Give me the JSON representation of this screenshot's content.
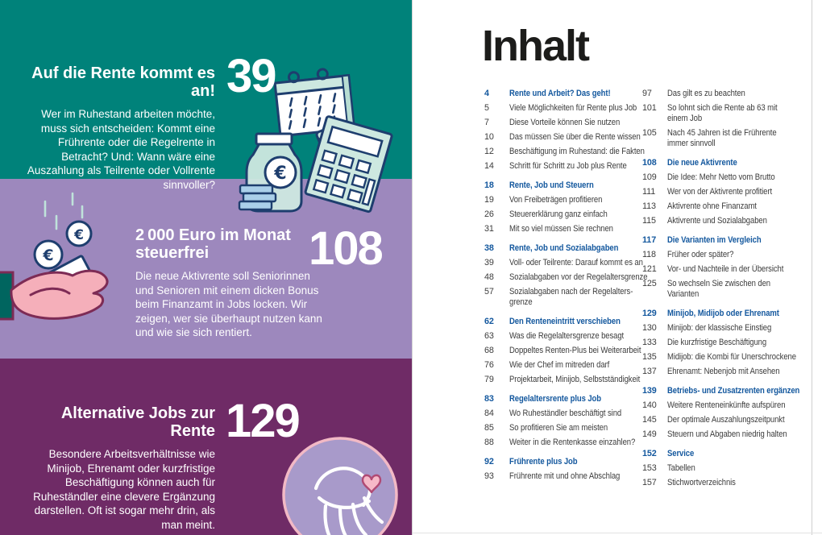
{
  "colors": {
    "teal": "#00827a",
    "purple": "#9d88bd",
    "plum": "#6f2b66",
    "toc_blue": "#14589e",
    "toc_text": "#3c3c3c",
    "icon_outline": "#1e3e6e",
    "mint": "#cde8e0",
    "coin_blue": "#aacfe9",
    "hand_pink": "#f5afba",
    "hand_outline": "#7d2b55",
    "heart_pink": "#f6b9c8",
    "circle_fill": "#a89aca",
    "circle_border": "#f2b9c5"
  },
  "panels": [
    {
      "page": "39",
      "title": "Auf die Rente kommt es an!",
      "body": "Wer im Ruhestand arbeiten möchte, muss sich entscheiden: Kommt eine Frührente oder die Regelrente in Betracht? Und: Wann wäre eine Auszahlung als Teilrente oder Vollrente sinnvoller?",
      "icons": [
        "calendar-icon",
        "calculator-icon",
        "pencil-icon",
        "money-jar-icon"
      ]
    },
    {
      "page": "108",
      "title": "2 000 Euro im Monat steuerfrei",
      "body": "Die neue Aktivrente soll Seniorinnen und Senioren mit einem dicken Bonus beim Finanzamt in Jobs locken. Wir zeigen, wer sie überhaupt nutzen kann und wie sie sich rentiert.",
      "icons": [
        "falling-coins-icon",
        "banknote-icon",
        "open-hand-icon"
      ]
    },
    {
      "page": "129",
      "title": "Alternative Jobs zur Rente",
      "body": "Besondere Arbeitsverhältnisse wie Minijob, Ehrenamt oder kurzfristige Beschäftigung können auch für Ruheständler eine clevere Ergänzung darstellen. Oft ist sogar mehr drin, als man meint.",
      "icons": [
        "hands-heart-icon"
      ]
    }
  ],
  "toc": {
    "title": "Inhalt",
    "columns": [
      {
        "sections": [
          {
            "header": {
              "page": "4",
              "label": "Rente und Arbeit? Das geht!"
            },
            "items": [
              {
                "page": "5",
                "label": "Viele Möglichkeiten für Rente plus Job"
              },
              {
                "page": "7",
                "label": "Diese Vorteile können Sie nutzen"
              },
              {
                "page": "10",
                "label": "Das müssen Sie über die Rente wissen"
              },
              {
                "page": "12",
                "label": "Beschäftigung im Ruhestand: die Fakten"
              },
              {
                "page": "14",
                "label": "Schritt für Schritt zu Job plus Rente"
              }
            ]
          },
          {
            "header": {
              "page": "18",
              "label": "Rente, Job und Steuern"
            },
            "items": [
              {
                "page": "19",
                "label": "Von Freibeträgen profitieren"
              },
              {
                "page": "26",
                "label": "Steuererklärung ganz einfach"
              },
              {
                "page": "31",
                "label": "Mit so viel müssen Sie rechnen"
              }
            ]
          },
          {
            "header": {
              "page": "38",
              "label": "Rente, Job und Sozialabgaben"
            },
            "items": [
              {
                "page": "39",
                "label": "Voll- oder Teilrente: Darauf kommt es an"
              },
              {
                "page": "48",
                "label": "Sozialabgaben vor der Regelaltersgrenze"
              },
              {
                "page": "57",
                "label": "Sozialabgaben nach der Regelalters-\ngrenze"
              }
            ]
          },
          {
            "header": {
              "page": "62",
              "label": "Den Renteneintritt verschieben"
            },
            "items": [
              {
                "page": "63",
                "label": "Was die Regelaltersgrenze besagt"
              },
              {
                "page": "68",
                "label": "Doppeltes Renten-Plus bei Weiterarbeit"
              },
              {
                "page": "76",
                "label": "Wie der Chef im mitreden darf"
              },
              {
                "page": "79",
                "label": "Projektarbeit, Minijob, Selbstständigkeit"
              }
            ]
          },
          {
            "header": {
              "page": "83",
              "label": "Regelaltersrente plus Job"
            },
            "items": [
              {
                "page": "84",
                "label": "Wo Ruheständler beschäftigt sind"
              },
              {
                "page": "85",
                "label": "So profitieren Sie am meisten"
              },
              {
                "page": "88",
                "label": "Weiter in die Rentenkasse einzahlen?"
              }
            ]
          },
          {
            "header": {
              "page": "92",
              "label": "Frührente plus Job"
            },
            "items": [
              {
                "page": "93",
                "label": "Frührente mit und ohne Abschlag"
              }
            ]
          }
        ]
      },
      {
        "sections": [
          {
            "header": null,
            "items": [
              {
                "page": "97",
                "label": "Das gilt es zu beachten"
              },
              {
                "page": "101",
                "label": "So lohnt sich die Rente ab 63 mit\neinem Job"
              },
              {
                "page": "105",
                "label": "Nach 45 Jahren ist die Frührente\nimmer sinnvoll"
              }
            ]
          },
          {
            "header": {
              "page": "108",
              "label": "Die neue Aktivrente"
            },
            "items": [
              {
                "page": "109",
                "label": "Die Idee: Mehr Netto vom Brutto"
              },
              {
                "page": "111",
                "label": "Wer von der Aktivrente profitiert"
              },
              {
                "page": "113",
                "label": "Aktivrente ohne Finanzamt"
              },
              {
                "page": "115",
                "label": "Aktivrente und Sozialabgaben"
              }
            ]
          },
          {
            "header": {
              "page": "117",
              "label": "Die Varianten im Vergleich"
            },
            "items": [
              {
                "page": "118",
                "label": "Früher oder später?"
              },
              {
                "page": "121",
                "label": "Vor- und Nachteile in der Übersicht"
              },
              {
                "page": "125",
                "label": "So wechseln Sie zwischen den\nVarianten"
              }
            ]
          },
          {
            "header": {
              "page": "129",
              "label": "Minijob, Midijob oder Ehrenamt"
            },
            "items": [
              {
                "page": "130",
                "label": "Minijob: der klassische Einstieg"
              },
              {
                "page": "133",
                "label": "Die kurzfristige Beschäftigung"
              },
              {
                "page": "135",
                "label": "Midijob: die Kombi für Unerschrockene"
              },
              {
                "page": "137",
                "label": "Ehrenamt: Nebenjob mit Ansehen"
              }
            ]
          },
          {
            "header": {
              "page": "139",
              "label": "Betriebs- und Zusatzrenten ergänzen"
            },
            "items": [
              {
                "page": "140",
                "label": "Weitere Renteneinkünfte aufspüren"
              },
              {
                "page": "145",
                "label": "Der optimale Auszahlungszeitpunkt"
              },
              {
                "page": "149",
                "label": "Steuern und Abgaben niedrig halten"
              }
            ]
          },
          {
            "header": {
              "page": "152",
              "label": "Service"
            },
            "items": [
              {
                "page": "153",
                "label": "Tabellen"
              },
              {
                "page": "157",
                "label": "Stichwortverzeichnis"
              }
            ]
          }
        ]
      }
    ]
  }
}
